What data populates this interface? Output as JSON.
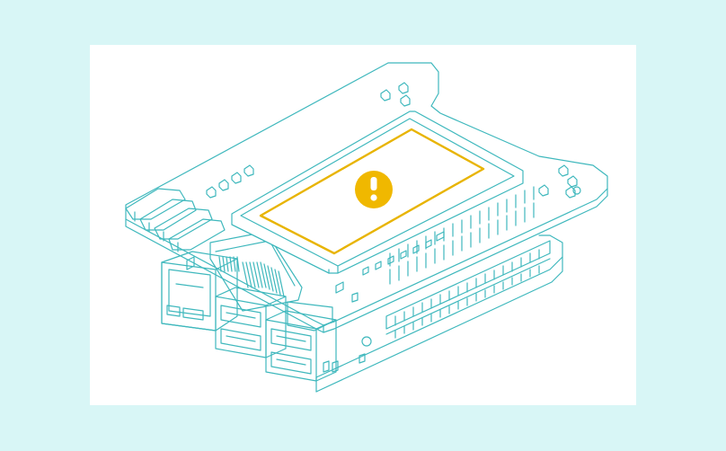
{
  "illustration": {
    "subject": "single-board-computer-with-hat-display",
    "status_icon": "warning-exclamation-icon"
  },
  "colors": {
    "page_background": "#d8f6f6",
    "panel_background": "#ffffff",
    "line": "#3fb8bd",
    "highlight": "#e8b400",
    "icon_glyph": "#ffffff"
  }
}
